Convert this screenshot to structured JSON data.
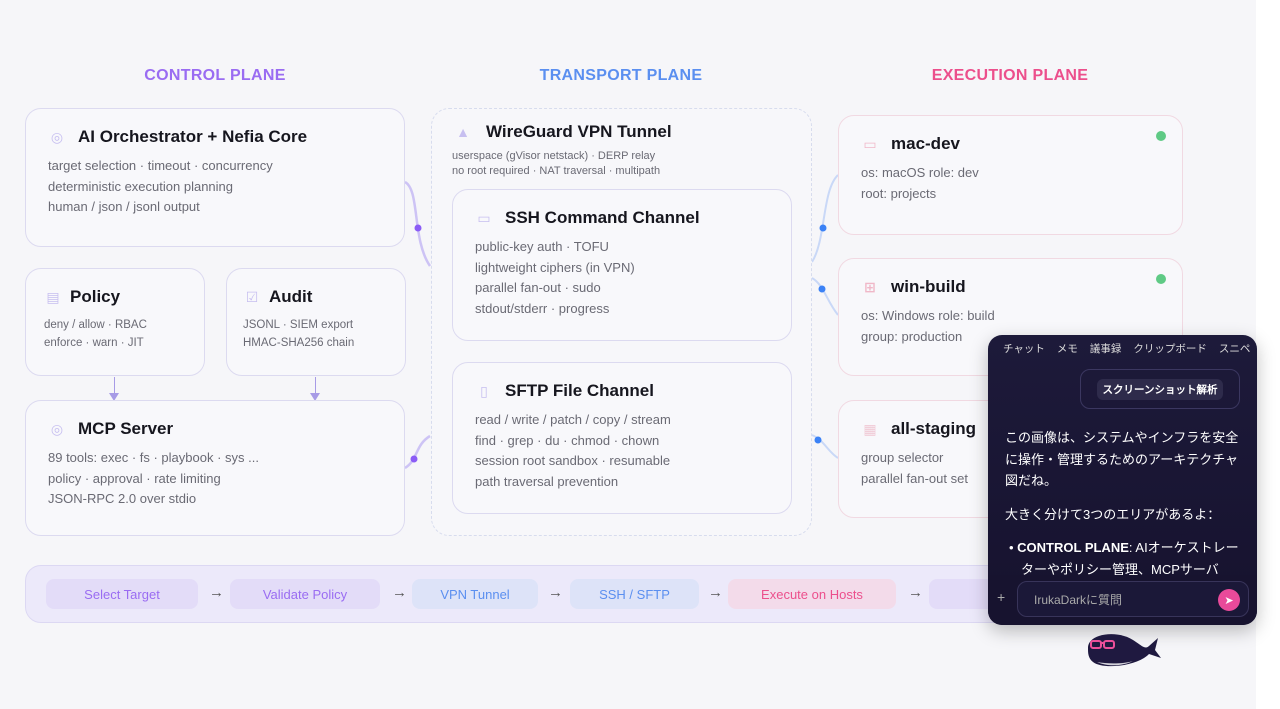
{
  "colors": {
    "control": "#9a6cf2",
    "transport": "#5b8ff0",
    "execution": "#ec4f8c",
    "status_online": "#5fca85"
  },
  "headers": {
    "control": "CONTROL PLANE",
    "transport": "TRANSPORT PLANE",
    "execution": "EXECUTION PLANE"
  },
  "control": {
    "orchestrator": {
      "title": "AI Orchestrator + Nefia Core",
      "icon": "target-icon",
      "lines": [
        "target selection · timeout · concurrency",
        "deterministic execution planning",
        "human / json / jsonl output"
      ]
    },
    "policy": {
      "title": "Policy",
      "icon": "document-icon",
      "lines": [
        "deny / allow · RBAC",
        "enforce · warn · JIT"
      ]
    },
    "audit": {
      "title": "Audit",
      "icon": "checkbox-icon",
      "lines": [
        "JSONL · SIEM export",
        "HMAC-SHA256 chain"
      ]
    },
    "mcp": {
      "title": "MCP Server",
      "icon": "target-icon",
      "lines": [
        "89 tools: exec · fs · playbook · sys ...",
        "policy · approval · rate limiting",
        "JSON-RPC 2.0 over stdio"
      ]
    }
  },
  "transport": {
    "vpn": {
      "title": "WireGuard VPN Tunnel",
      "icon": "shield-icon",
      "lines": [
        "userspace (gVisor netstack) · DERP relay",
        "no root required · NAT traversal · multipath"
      ]
    },
    "ssh": {
      "title": "SSH Command Channel",
      "icon": "terminal-icon",
      "lines": [
        "public-key auth · TOFU",
        "lightweight ciphers (in VPN)",
        "parallel fan-out · sudo",
        "stdout/stderr · progress"
      ]
    },
    "sftp": {
      "title": "SFTP File Channel",
      "icon": "file-icon",
      "lines": [
        "read / write / patch / copy / stream",
        "find · grep · du · chmod · chown",
        "session root sandbox · resumable",
        "path traversal prevention"
      ]
    }
  },
  "execution": [
    {
      "title": "mac-dev",
      "icon": "monitor-icon",
      "lines": [
        "os: macOS role: dev",
        "root: projects"
      ],
      "status": "online"
    },
    {
      "title": "win-build",
      "icon": "windows-icon",
      "lines": [
        "os: Windows role: build",
        "group: production"
      ],
      "status": "online"
    },
    {
      "title": "all-staging",
      "icon": "grid-icon",
      "lines": [
        "group selector",
        "parallel fan-out set"
      ]
    }
  ],
  "pipeline": [
    "Select Target",
    "Validate Policy",
    "VPN Tunnel",
    "SSH / SFTP",
    "Execute on Hosts"
  ],
  "chat": {
    "tabs": [
      "チャット",
      "メモ",
      "議事録",
      "クリップボード",
      "スニペ"
    ],
    "user_bubble": "スクリーンショット解析",
    "msg1": "この画像は、システムやインフラを安全に操作・管理するためのアーキテクチャ図だね。",
    "msg2": "大きく分けて3つのエリアがあるよ：",
    "bullet_bold": "CONTROL PLANE",
    "bullet_text": ": AIオーケストレーターやポリシー管理、MCPサーバ",
    "input_placeholder": "IrukaDarkに質問",
    "add_label": "+"
  }
}
